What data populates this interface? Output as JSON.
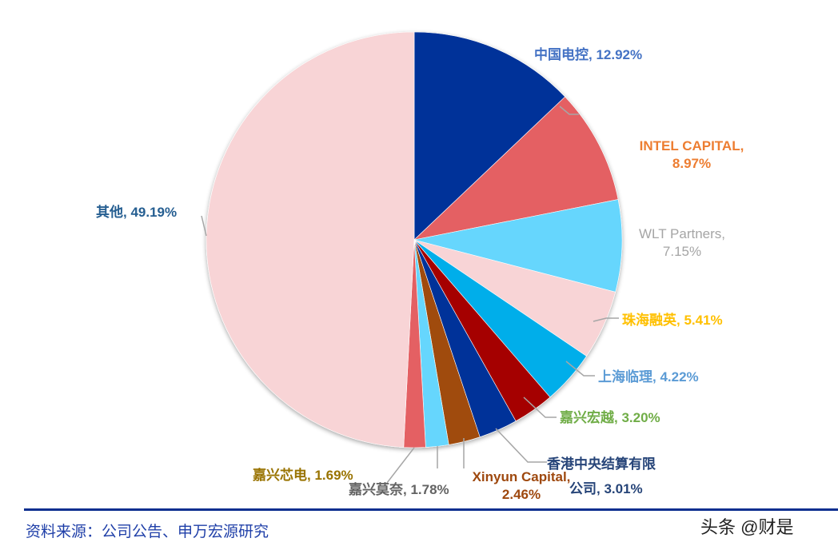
{
  "chart_data": {
    "type": "pie",
    "title": "",
    "start_angle_deg": 0,
    "direction": "clockwise",
    "slices": [
      {
        "label": "中国电控",
        "value": 12.92,
        "display": "中国电控, 12.92%",
        "color": "#003399",
        "label_color": "#4472c4"
      },
      {
        "label": "INTEL CAPITAL",
        "value": 8.97,
        "display": "INTEL CAPITAL, 8.97%",
        "color": "#e46064",
        "label_color": "#ed7d31"
      },
      {
        "label": "WLT Partners",
        "value": 7.15,
        "display": "WLT Partners, 7.15%",
        "color": "#66d6fd",
        "label_color": "#a5a5a5"
      },
      {
        "label": "珠海融英",
        "value": 5.41,
        "display": "珠海融英, 5.41%",
        "color": "#f8d4d6",
        "label_color": "#ffc000"
      },
      {
        "label": "上海临理",
        "value": 4.22,
        "display": "上海临理, 4.22%",
        "color": "#00aeea",
        "label_color": "#5b9bd5"
      },
      {
        "label": "嘉兴宏越",
        "value": 3.2,
        "display": "嘉兴宏越, 3.20%",
        "color": "#a50000",
        "label_color": "#70ad47"
      },
      {
        "label": "香港中央结算有限公司",
        "value": 3.01,
        "display": "香港中央结算有限公司, 3.01%",
        "color": "#003399",
        "label_color": "#264478"
      },
      {
        "label": "Xinyun Capital",
        "value": 2.46,
        "display": "Xinyun Capital, 2.46%",
        "color": "#a04b10",
        "label_color": "#9e480e"
      },
      {
        "label": "嘉兴莫奈",
        "value": 1.78,
        "display": "嘉兴莫奈, 1.78%",
        "color": "#66d6fd",
        "label_color": "#636363"
      },
      {
        "label": "嘉兴芯电",
        "value": 1.69,
        "display": "嘉兴芯电, 1.69%",
        "color": "#e46064",
        "label_color": "#997300"
      },
      {
        "label": "其他",
        "value": 49.19,
        "display": "其他, 49.19%",
        "color": "#f8d4d6",
        "label_color": "#255e91"
      }
    ],
    "legend": "none (data labels with leader lines)"
  },
  "labels": {
    "zgdk": {
      "name": "中国电控",
      "pct": "12.92%"
    },
    "intel": {
      "line1": "INTEL CAPITAL,",
      "line2": "8.97%"
    },
    "wlt": {
      "line1": "WLT Partners,",
      "line2": "7.15%"
    },
    "zhry": "珠海融英, 5.41%",
    "shll": "上海临理, 4.22%",
    "jxhy": "嘉兴宏越, 3.20%",
    "hkcs": {
      "line1": "香港中央结算有限",
      "line2": "公司, 3.01%"
    },
    "xinyun": {
      "line1": "Xinyun Capital,",
      "line2": "2.46%"
    },
    "jxmn": "嘉兴莫奈, 1.78%",
    "jxxd": "嘉兴芯电, 1.69%",
    "other": "其他, 49.19%"
  },
  "footer": {
    "source": "资料来源：公司公告、申万宏源研究",
    "watermark": "头条 @财是"
  }
}
